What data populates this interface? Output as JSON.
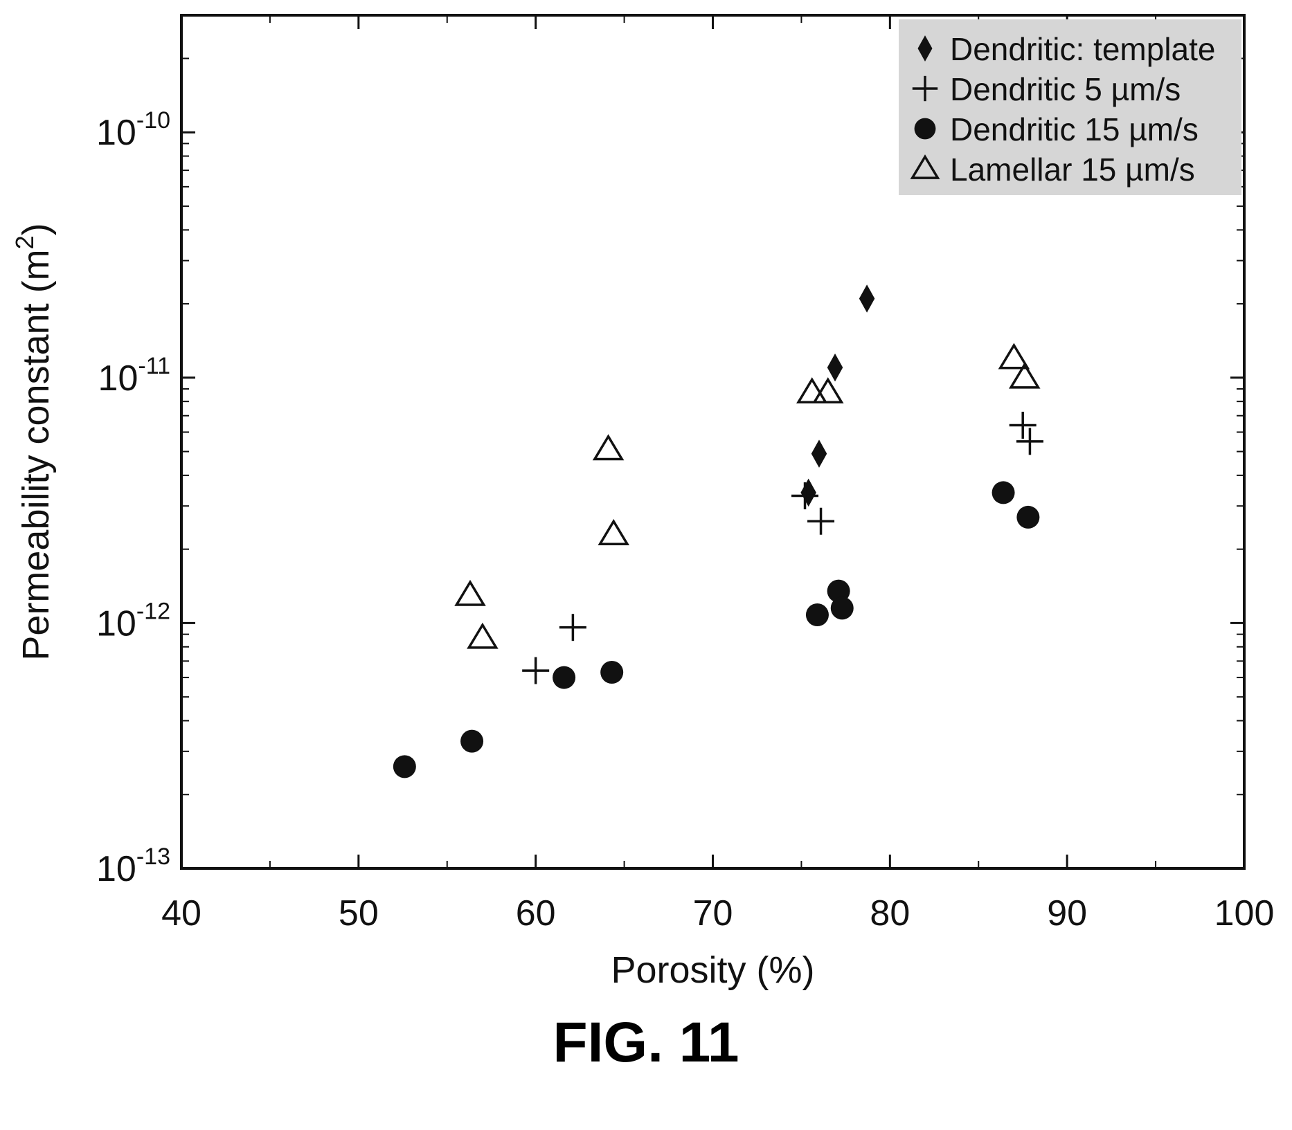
{
  "chart_data": {
    "type": "scatter",
    "title": "",
    "xlabel": "Porosity (%)",
    "ylabel": "Permeability constant (m",
    "ylabel_sup": "2",
    "ylabel_close": ")",
    "xlim": [
      40,
      100
    ],
    "ylim": [
      1e-13,
      3e-10
    ],
    "yscale": "log",
    "x_ticks": [
      40,
      50,
      60,
      70,
      80,
      90,
      100
    ],
    "x_tick_labels": [
      "40",
      "50",
      "60",
      "70",
      "80",
      "90",
      "100"
    ],
    "y_ticks": [
      1e-13,
      1e-12,
      1e-11,
      1e-10
    ],
    "y_tick_base": "10",
    "y_tick_exponents": [
      "-13",
      "-12",
      "-11",
      "-10"
    ],
    "grid": false,
    "legend_position": "top-right",
    "series": [
      {
        "name": "Dendritic: template",
        "marker": "diamond-filled",
        "points": [
          [
            75.4,
            3.4e-12
          ],
          [
            76.0,
            4.9e-12
          ],
          [
            76.9,
            1.1e-11
          ],
          [
            78.7,
            2.1e-11
          ]
        ]
      },
      {
        "name": "Dendritic 5 µm/s",
        "marker": "plus",
        "points": [
          [
            60.0,
            6.4e-13
          ],
          [
            62.1,
            9.6e-13
          ],
          [
            75.2,
            3.3e-12
          ],
          [
            76.1,
            2.6e-12
          ],
          [
            87.5,
            6.4e-12
          ],
          [
            87.9,
            5.5e-12
          ]
        ]
      },
      {
        "name": "Dendritic 15 µm/s",
        "marker": "circle-filled",
        "points": [
          [
            52.6,
            2.6e-13
          ],
          [
            56.4,
            3.3e-13
          ],
          [
            61.6,
            6e-13
          ],
          [
            64.3,
            6.3e-13
          ],
          [
            75.9,
            1.08e-12
          ],
          [
            77.1,
            1.35e-12
          ],
          [
            77.3,
            1.15e-12
          ],
          [
            86.4,
            3.4e-12
          ],
          [
            87.8,
            2.7e-12
          ]
        ]
      },
      {
        "name": "Lamellar 15 µm/s",
        "marker": "triangle-open",
        "points": [
          [
            56.3,
            1.3e-12
          ],
          [
            57.0,
            8.7e-13
          ],
          [
            64.1,
            5.1e-12
          ],
          [
            64.4,
            2.3e-12
          ],
          [
            75.6,
            8.7e-12
          ],
          [
            76.5,
            8.7e-12
          ],
          [
            87.0,
            1.2e-11
          ],
          [
            87.6,
            1e-11
          ]
        ]
      }
    ],
    "colors": {
      "axis": "#111111",
      "marker": "#111111",
      "legend_bg": "#d6d6d6"
    }
  },
  "figure_caption": "FIG. 11"
}
